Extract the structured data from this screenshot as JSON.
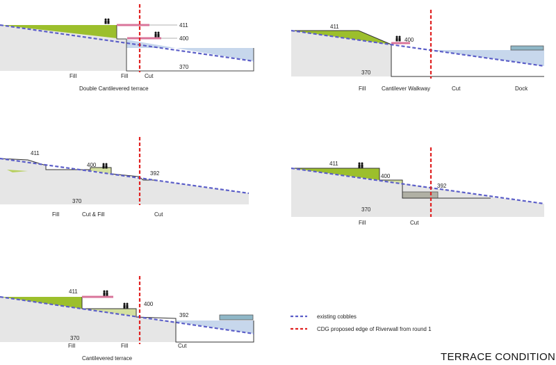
{
  "diagrams": [
    {
      "id": "double-cantilevered",
      "caption": "Double Cantilevered terrace",
      "levels": [
        "411",
        "400",
        "370"
      ],
      "zones": [
        "Fill",
        "Fill",
        "Cut"
      ]
    },
    {
      "id": "cantilever-walkway",
      "levels": [
        "411",
        "400",
        "370"
      ],
      "zones": [
        "Fill",
        "Cantilever Walkway",
        "Cut",
        "Dock"
      ]
    },
    {
      "id": "cut-and-fill",
      "levels": [
        "411",
        "400",
        "392",
        "370"
      ],
      "zones": [
        "Fill",
        "Cut & Fill",
        "Cut"
      ]
    },
    {
      "id": "fill-cut",
      "levels": [
        "411",
        "400",
        "392",
        "370"
      ],
      "zones": [
        "Fill",
        "Cut"
      ]
    },
    {
      "id": "cantilevered",
      "caption": "Cantilevered terrace",
      "levels": [
        "411",
        "400",
        "392",
        "370"
      ],
      "zones": [
        "Fill",
        "Fill",
        "Cut"
      ]
    }
  ],
  "legend": {
    "items": [
      {
        "label": "existing cobbles",
        "color": "#5b5ec8",
        "style": "dashed"
      },
      {
        "label": "CDG proposed edge of Riverwall from round 1",
        "color": "#e02020",
        "style": "dashed"
      }
    ]
  },
  "title": "TERRACE CONDITIONS",
  "colors": {
    "ground": "#e6e6e6",
    "fill": "#9cbf2c",
    "fill_light": "#d4e0a0",
    "water": "#c7d7ec",
    "dock": "#8fb7c7",
    "terrace": "#d9749a",
    "cut_block": "#b0b0a4"
  }
}
